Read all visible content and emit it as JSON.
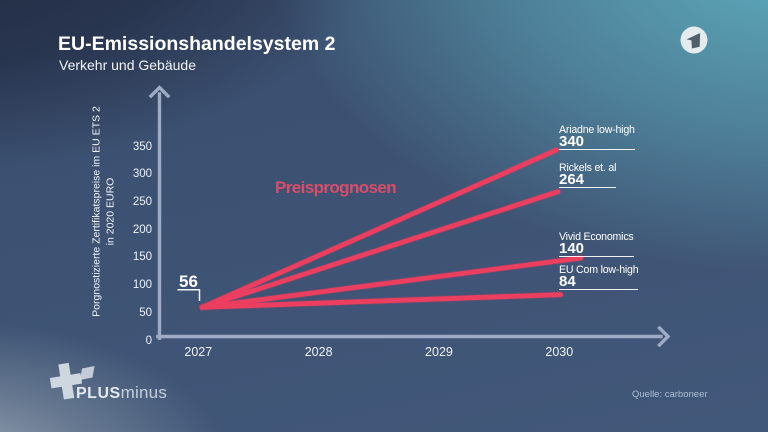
{
  "header": {
    "title": "EU-Emissionshandelsystem 2",
    "subtitle": "Verkehr und Gebäude"
  },
  "branding": {
    "channel_logo": "ARD",
    "program_logo_bold": "PLUS",
    "program_logo_light": "minus"
  },
  "source_label": "Quelle: carboneer",
  "chart_data": {
    "type": "line",
    "title": "Preisprognosen",
    "ylabel_lines": [
      "Porgnostizierte Zertifikatspreise im EU ETS 2",
      "in 2020 EURO"
    ],
    "xlabel": "",
    "x_ticks": [
      "2027",
      "2028",
      "2029",
      "2030"
    ],
    "y_ticks": [
      0,
      50,
      100,
      150,
      200,
      250,
      300,
      350
    ],
    "ylim": [
      0,
      350
    ],
    "x_range": [
      2027,
      2030
    ],
    "grid": false,
    "start_point": {
      "year": 2027,
      "value": 56,
      "label": "56"
    },
    "series": [
      {
        "name": "Ariadne low-high",
        "x": [
          2027,
          2030
        ],
        "values": [
          56,
          340
        ],
        "end_label": "340"
      },
      {
        "name": "Rickels et. al",
        "x": [
          2027,
          2030
        ],
        "values": [
          56,
          264
        ],
        "end_label": "264"
      },
      {
        "name": "Vivid Economics",
        "x": [
          2027,
          2030
        ],
        "values": [
          56,
          140
        ],
        "end_label": "140"
      },
      {
        "name": "EU Com low-high",
        "x": [
          2027,
          2030
        ],
        "values": [
          56,
          84
        ],
        "end_label": "84"
      }
    ],
    "line_color": "#ec3e5e",
    "axis_color": "#9fabc4",
    "legend_position": "at-line-endpoints"
  }
}
